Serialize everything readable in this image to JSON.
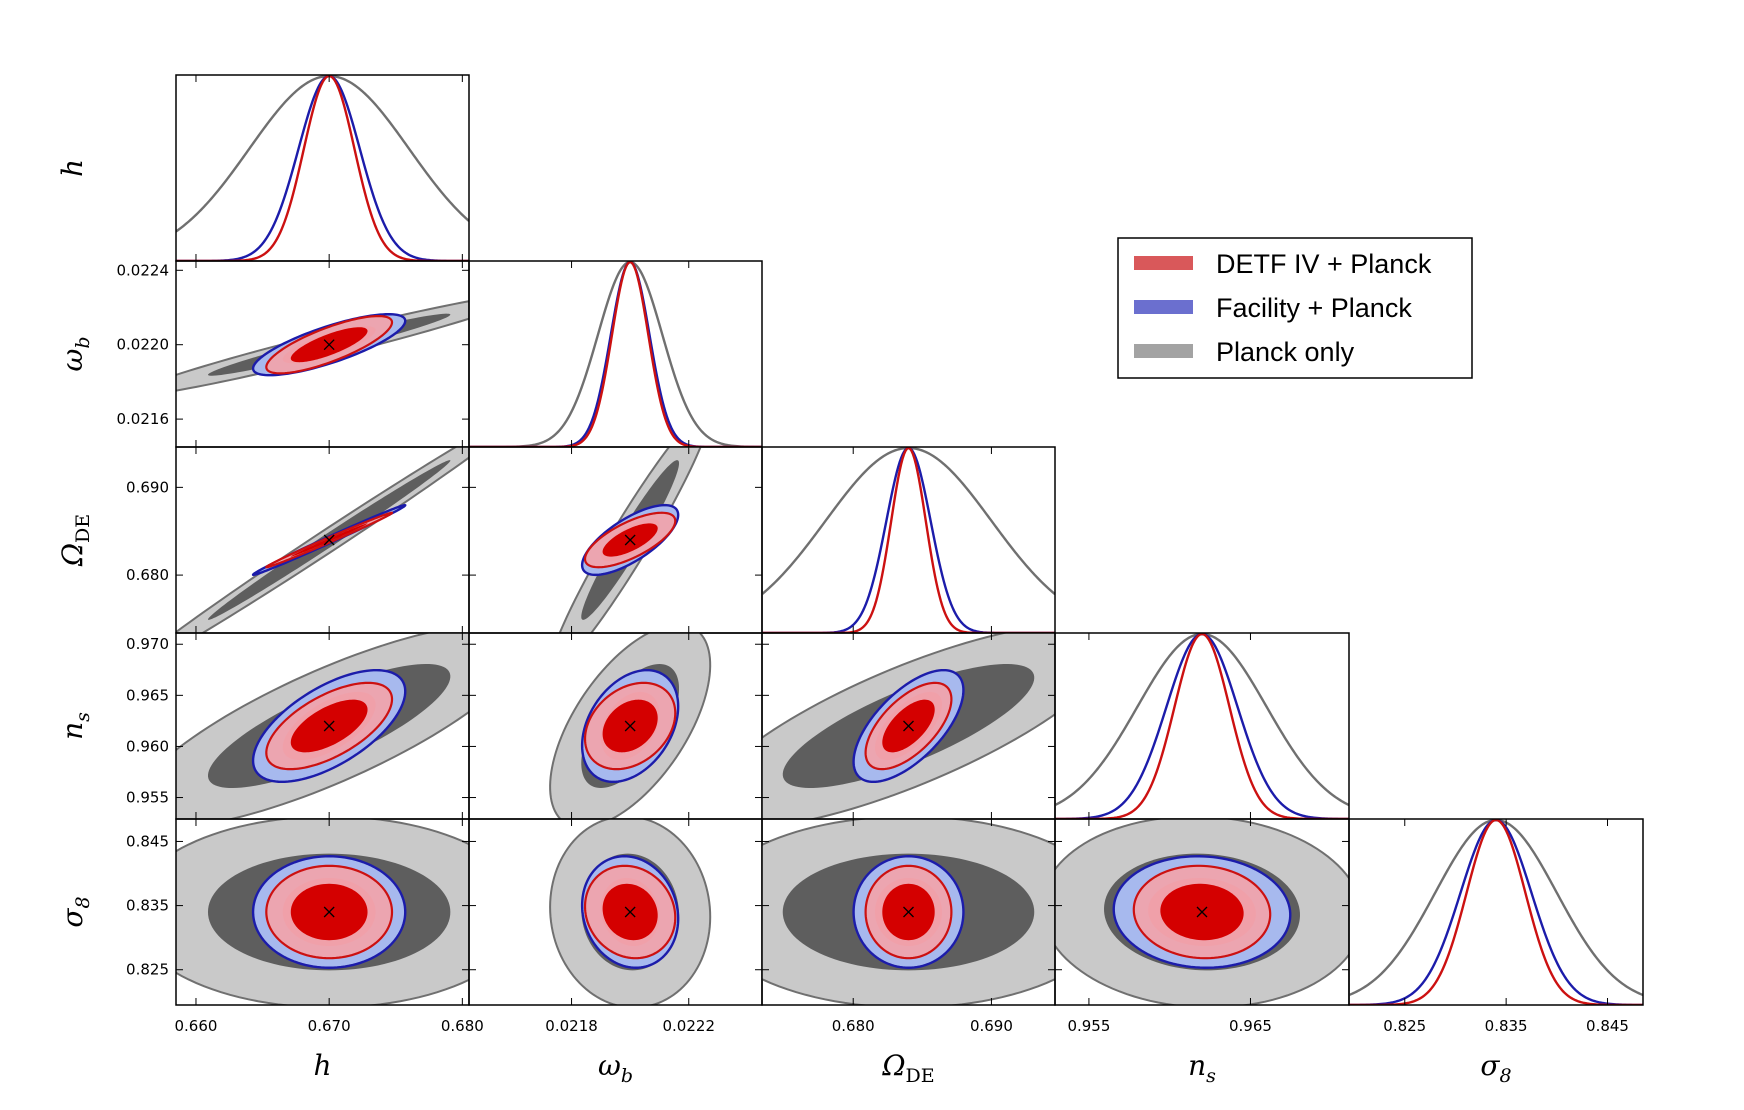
{
  "chart_data": {
    "type": "corner",
    "parameters": [
      {
        "key": "h",
        "label": "h",
        "sub": "",
        "fiducial": 0.67,
        "range": [
          0.6585,
          0.6805
        ],
        "ticks": [
          "0.660",
          "0.670",
          "0.680"
        ]
      },
      {
        "key": "omega_b",
        "label": "ω",
        "sub": "b",
        "fiducial": 0.022,
        "range": [
          0.02145,
          0.02245
        ],
        "ticks": [
          "0.0216",
          "0.0220",
          "0.0224"
        ],
        "xticks": [
          "0.0218",
          "0.0222"
        ]
      },
      {
        "key": "Omega_DE",
        "label": "Ω",
        "sub": "DE",
        "fiducial": 0.684,
        "range": [
          0.6734,
          0.6946
        ],
        "ticks": [
          "0.680",
          "0.690"
        ]
      },
      {
        "key": "n_s",
        "label": "n",
        "sub": "s",
        "fiducial": 0.962,
        "range": [
          0.9529,
          0.9711
        ],
        "ticks": [
          "0.955",
          "0.960",
          "0.965",
          "0.970"
        ],
        "xticks": [
          "0.955",
          "0.965"
        ]
      },
      {
        "key": "sigma_8",
        "label": "σ",
        "sub": "8",
        "fiducial": 0.834,
        "range": [
          0.8195,
          0.8485
        ],
        "ticks": [
          "0.825",
          "0.835",
          "0.845"
        ]
      }
    ],
    "series": [
      {
        "name": "DETF IV + Planck",
        "color": "#d40000",
        "fill_1sigma": "#d40000",
        "fill_2sigma": "#f2a3aa",
        "line": "#cc1111",
        "sigmas": [
          0.0019,
          6.2e-05,
          0.00125,
          0.0017,
          0.0029
        ]
      },
      {
        "name": "Facility + Planck",
        "color": "#5a5fd0",
        "fill_1sigma": "#d40000",
        "fill_2sigma": "#f2a3aa",
        "fill_outer": "#a7b9ee",
        "line": "#1c1caa",
        "sigmas": [
          0.0023,
          6.6e-05,
          0.0016,
          0.0022,
          0.0035
        ]
      },
      {
        "name": "Planck only",
        "color": "#a0a0a0",
        "fill_1sigma": "#5a5a5a",
        "fill_2sigma": "#c9c9c9",
        "line": "#707070",
        "sigmas": [
          0.006,
          0.00011,
          0.006,
          0.004,
          0.006
        ]
      }
    ],
    "correlations": {
      "omega_b|h": [
        0.78,
        0.78,
        0.97
      ],
      "Omega_DE|h": [
        0.995,
        0.995,
        0.995
      ],
      "Omega_DE|omega_b": [
        0.7,
        0.72,
        0.96
      ],
      "n_s|h": [
        0.62,
        0.62,
        0.8
      ],
      "n_s|omega_b": [
        0.3,
        0.35,
        0.6
      ],
      "n_s|Omega_DE": [
        0.62,
        0.64,
        0.78
      ],
      "sigma_8|h": [
        0.0,
        0.0,
        0.0
      ],
      "sigma_8|omega_b": [
        -0.12,
        -0.12,
        -0.05
      ],
      "sigma_8|Omega_DE": [
        0.0,
        0.0,
        0.0
      ],
      "sigma_8|n_s": [
        -0.05,
        -0.05,
        -0.05
      ]
    },
    "legend": {
      "position": "upper-right",
      "entries": [
        "DETF IV + Planck",
        "Facility + Planck",
        "Planck only"
      ]
    }
  }
}
